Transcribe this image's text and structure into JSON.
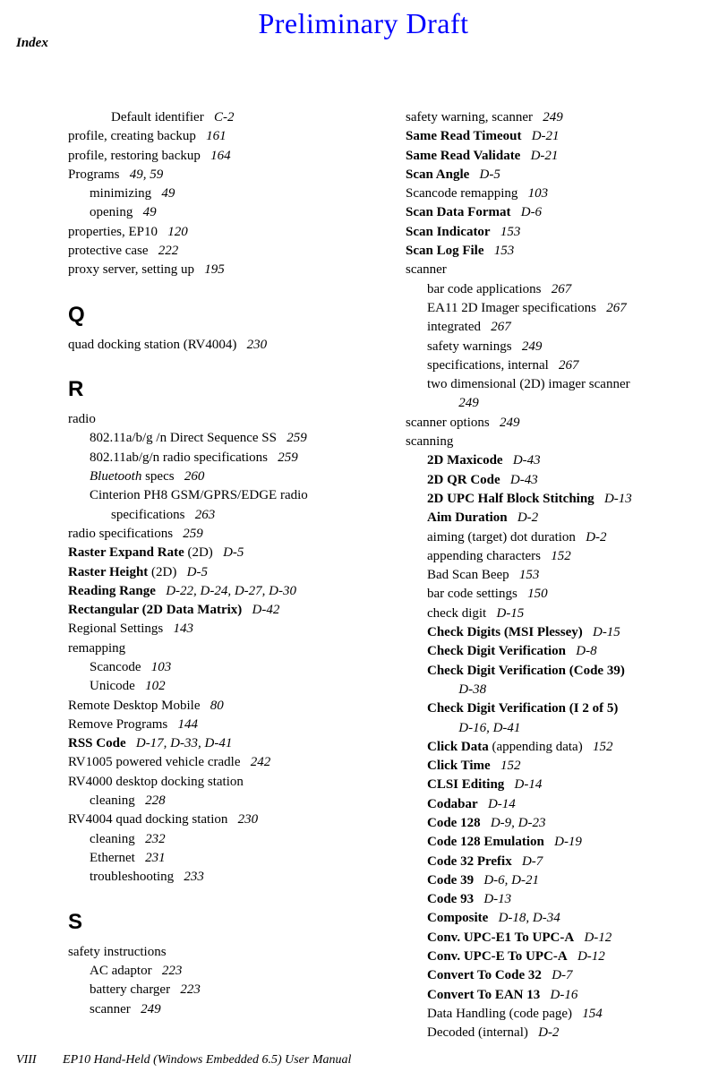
{
  "header": {
    "draft": "Preliminary Draft",
    "index": "Index"
  },
  "footer": {
    "pageNum": "VIII",
    "title": "EP10 Hand-Held (Windows Embedded 6.5) User Manual"
  },
  "left": [
    {
      "t": "entry",
      "lvl": 2,
      "text": "Default identifier",
      "pg": "C-2"
    },
    {
      "t": "entry",
      "lvl": 0,
      "text": "profile, creating backup",
      "pg": "161"
    },
    {
      "t": "entry",
      "lvl": 0,
      "text": "profile, restoring backup",
      "pg": "164"
    },
    {
      "t": "entry",
      "lvl": 0,
      "text": "Programs",
      "pg": "49, 59"
    },
    {
      "t": "entry",
      "lvl": 1,
      "text": "minimizing",
      "pg": "49"
    },
    {
      "t": "entry",
      "lvl": 1,
      "text": "opening",
      "pg": "49"
    },
    {
      "t": "entry",
      "lvl": 0,
      "text": "properties, EP10",
      "pg": "120"
    },
    {
      "t": "entry",
      "lvl": 0,
      "text": "protective case",
      "pg": "222"
    },
    {
      "t": "entry",
      "lvl": 0,
      "text": "proxy server, setting up",
      "pg": "195"
    },
    {
      "t": "letter",
      "text": "Q"
    },
    {
      "t": "entry",
      "lvl": 0,
      "text": "quad docking station (RV4004)",
      "pg": "230"
    },
    {
      "t": "letter",
      "text": "R"
    },
    {
      "t": "entry",
      "lvl": 0,
      "text": "radio"
    },
    {
      "t": "entry",
      "lvl": 1,
      "text": "802.11a/b/g /n Direct Sequence SS",
      "pg": "259"
    },
    {
      "t": "entry",
      "lvl": 1,
      "text": "802.11ab/g/n radio specifications",
      "pg": "259"
    },
    {
      "t": "entry",
      "lvl": 1,
      "html": "<span class='italic'>Bluetooth</span> specs",
      "pg": "260"
    },
    {
      "t": "entry",
      "lvl": 1,
      "text": "Cinterion PH8 GSM/GPRS/EDGE radio"
    },
    {
      "t": "entry",
      "lvl": 2,
      "text": "specifications",
      "pg": "263"
    },
    {
      "t": "entry",
      "lvl": 0,
      "text": "radio specifications",
      "pg": "259"
    },
    {
      "t": "entry",
      "lvl": 0,
      "html": "<span class='bold'>Raster Expand Rate</span> (2D)",
      "pg": "D-5"
    },
    {
      "t": "entry",
      "lvl": 0,
      "html": "<span class='bold'>Raster Height</span> (2D)",
      "pg": "D-5"
    },
    {
      "t": "entry",
      "lvl": 0,
      "bold": true,
      "text": "Reading Range",
      "pg": "D-22, D-24, D-27, D-30"
    },
    {
      "t": "entry",
      "lvl": 0,
      "bold": true,
      "text": "Rectangular (2D Data Matrix)",
      "pg": "D-42"
    },
    {
      "t": "entry",
      "lvl": 0,
      "text": "Regional Settings",
      "pg": "143"
    },
    {
      "t": "entry",
      "lvl": 0,
      "text": "remapping"
    },
    {
      "t": "entry",
      "lvl": 1,
      "text": "Scancode",
      "pg": "103"
    },
    {
      "t": "entry",
      "lvl": 1,
      "text": "Unicode",
      "pg": "102"
    },
    {
      "t": "entry",
      "lvl": 0,
      "text": "Remote Desktop Mobile",
      "pg": "80"
    },
    {
      "t": "entry",
      "lvl": 0,
      "text": "Remove Programs",
      "pg": "144"
    },
    {
      "t": "entry",
      "lvl": 0,
      "bold": true,
      "text": "RSS Code",
      "pg": "D-17, D-33, D-41"
    },
    {
      "t": "entry",
      "lvl": 0,
      "text": "RV1005 powered vehicle cradle",
      "pg": "242"
    },
    {
      "t": "entry",
      "lvl": 0,
      "text": "RV4000 desktop docking station"
    },
    {
      "t": "entry",
      "lvl": 1,
      "text": "cleaning",
      "pg": "228"
    },
    {
      "t": "entry",
      "lvl": 0,
      "text": "RV4004 quad docking station",
      "pg": "230"
    },
    {
      "t": "entry",
      "lvl": 1,
      "text": "cleaning",
      "pg": "232"
    },
    {
      "t": "entry",
      "lvl": 1,
      "text": "Ethernet",
      "pg": "231"
    },
    {
      "t": "entry",
      "lvl": 1,
      "text": "troubleshooting",
      "pg": "233"
    },
    {
      "t": "letter",
      "text": "S"
    },
    {
      "t": "entry",
      "lvl": 0,
      "text": "safety instructions"
    },
    {
      "t": "entry",
      "lvl": 1,
      "text": "AC adaptor",
      "pg": "223"
    },
    {
      "t": "entry",
      "lvl": 1,
      "text": "battery charger",
      "pg": "223"
    },
    {
      "t": "entry",
      "lvl": 1,
      "text": "scanner",
      "pg": "249"
    }
  ],
  "right": [
    {
      "t": "entry",
      "lvl": 0,
      "text": "safety warning, scanner",
      "pg": "249"
    },
    {
      "t": "entry",
      "lvl": 0,
      "bold": true,
      "text": "Same Read Timeout",
      "pg": "D-21"
    },
    {
      "t": "entry",
      "lvl": 0,
      "bold": true,
      "text": "Same Read Validate",
      "pg": "D-21"
    },
    {
      "t": "entry",
      "lvl": 0,
      "bold": true,
      "text": "Scan Angle",
      "pg": "D-5"
    },
    {
      "t": "entry",
      "lvl": 0,
      "text": "Scancode remapping",
      "pg": "103"
    },
    {
      "t": "entry",
      "lvl": 0,
      "bold": true,
      "text": "Scan Data Format",
      "pg": "D-6"
    },
    {
      "t": "entry",
      "lvl": 0,
      "bold": true,
      "text": "Scan Indicator",
      "pg": "153"
    },
    {
      "t": "entry",
      "lvl": 0,
      "bold": true,
      "text": "Scan Log File",
      "pg": "153"
    },
    {
      "t": "entry",
      "lvl": 0,
      "text": "scanner"
    },
    {
      "t": "entry",
      "lvl": 1,
      "text": "bar code applications",
      "pg": "267"
    },
    {
      "t": "entry",
      "lvl": 1,
      "text": "EA11 2D Imager specifications",
      "pg": "267"
    },
    {
      "t": "entry",
      "lvl": 1,
      "text": "integrated",
      "pg": "267"
    },
    {
      "t": "entry",
      "lvl": 1,
      "text": "safety warnings",
      "pg": "249"
    },
    {
      "t": "entry",
      "lvl": 1,
      "text": "specifications, internal",
      "pg": "267"
    },
    {
      "t": "entry",
      "lvl": 1,
      "text": "two dimensional (2D) imager scanner"
    },
    {
      "t": "entry",
      "lvl": 2,
      "text": "",
      "pg": "249"
    },
    {
      "t": "entry",
      "lvl": 0,
      "text": "scanner options",
      "pg": "249"
    },
    {
      "t": "entry",
      "lvl": 0,
      "text": "scanning"
    },
    {
      "t": "entry",
      "lvl": 1,
      "bold": true,
      "text": "2D Maxicode",
      "pg": "D-43"
    },
    {
      "t": "entry",
      "lvl": 1,
      "bold": true,
      "text": "2D QR Code",
      "pg": "D-43"
    },
    {
      "t": "entry",
      "lvl": 1,
      "bold": true,
      "text": "2D UPC Half Block Stitching",
      "pg": "D-13"
    },
    {
      "t": "entry",
      "lvl": 1,
      "bold": true,
      "text": "Aim Duration",
      "pg": "D-2"
    },
    {
      "t": "entry",
      "lvl": 1,
      "text": "aiming (target) dot duration",
      "pg": "D-2"
    },
    {
      "t": "entry",
      "lvl": 1,
      "text": "appending characters",
      "pg": "152"
    },
    {
      "t": "entry",
      "lvl": 1,
      "text": "Bad Scan Beep",
      "pg": "153"
    },
    {
      "t": "entry",
      "lvl": 1,
      "text": "bar code settings",
      "pg": "150"
    },
    {
      "t": "entry",
      "lvl": 1,
      "text": "check digit",
      "pg": "D-15"
    },
    {
      "t": "entry",
      "lvl": 1,
      "bold": true,
      "text": "Check Digits (MSI Plessey)",
      "pg": "D-15"
    },
    {
      "t": "entry",
      "lvl": 1,
      "bold": true,
      "text": "Check Digit Verification",
      "pg": "D-8"
    },
    {
      "t": "entry",
      "lvl": 1,
      "bold": true,
      "text": "Check Digit Verification (Code 39)"
    },
    {
      "t": "entry",
      "lvl": 2,
      "text": "",
      "pg": "D-38"
    },
    {
      "t": "entry",
      "lvl": 1,
      "bold": true,
      "text": "Check Digit Verification (I 2 of 5)"
    },
    {
      "t": "entry",
      "lvl": 2,
      "text": "",
      "pg": "D-16, D-41"
    },
    {
      "t": "entry",
      "lvl": 1,
      "html": "<span class='bold'>Click Data</span> (appending data)",
      "pg": "152"
    },
    {
      "t": "entry",
      "lvl": 1,
      "bold": true,
      "text": "Click Time",
      "pg": "152"
    },
    {
      "t": "entry",
      "lvl": 1,
      "bold": true,
      "text": "CLSI Editing",
      "pg": "D-14"
    },
    {
      "t": "entry",
      "lvl": 1,
      "bold": true,
      "text": "Codabar",
      "pg": "D-14"
    },
    {
      "t": "entry",
      "lvl": 1,
      "bold": true,
      "text": "Code 128",
      "pg": "D-9, D-23"
    },
    {
      "t": "entry",
      "lvl": 1,
      "bold": true,
      "text": "Code 128 Emulation",
      "pg": "D-19"
    },
    {
      "t": "entry",
      "lvl": 1,
      "bold": true,
      "text": "Code 32 Prefix",
      "pg": "D-7"
    },
    {
      "t": "entry",
      "lvl": 1,
      "bold": true,
      "text": "Code 39",
      "pg": "D-6, D-21"
    },
    {
      "t": "entry",
      "lvl": 1,
      "bold": true,
      "text": "Code 93",
      "pg": "D-13"
    },
    {
      "t": "entry",
      "lvl": 1,
      "bold": true,
      "text": "Composite",
      "pg": "D-18, D-34"
    },
    {
      "t": "entry",
      "lvl": 1,
      "bold": true,
      "text": "Conv. UPC-E1 To UPC-A",
      "pg": "D-12"
    },
    {
      "t": "entry",
      "lvl": 1,
      "bold": true,
      "text": "Conv. UPC-E To UPC-A",
      "pg": "D-12"
    },
    {
      "t": "entry",
      "lvl": 1,
      "bold": true,
      "text": "Convert To Code 32",
      "pg": "D-7"
    },
    {
      "t": "entry",
      "lvl": 1,
      "bold": true,
      "text": "Convert To EAN 13",
      "pg": "D-16"
    },
    {
      "t": "entry",
      "lvl": 1,
      "text": "Data Handling (code page)",
      "pg": "154"
    },
    {
      "t": "entry",
      "lvl": 1,
      "text": "Decoded (internal)",
      "pg": "D-2"
    }
  ]
}
